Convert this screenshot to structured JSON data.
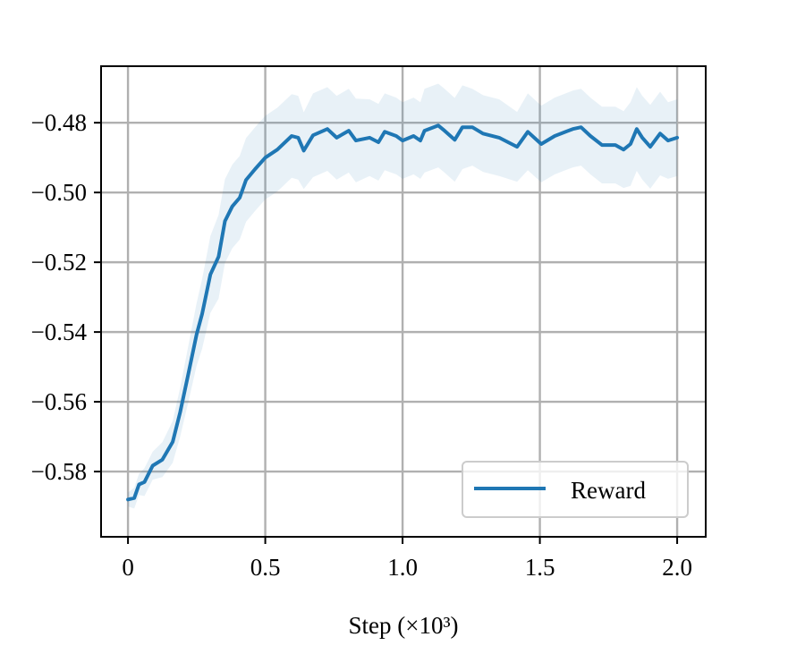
{
  "chart_data": {
    "type": "line",
    "title": "",
    "xlabel": "Step (×10³)",
    "ylabel": "",
    "xlim": [
      -0.098,
      2.104
    ],
    "ylim": [
      -0.5987,
      -0.4638
    ],
    "xticks": [
      0,
      0.5,
      1.0,
      1.5,
      2.0
    ],
    "xtick_labels": [
      "0",
      "0.5",
      "1.0",
      "1.5",
      "2.0"
    ],
    "yticks": [
      -0.48,
      -0.5,
      -0.52,
      -0.54,
      -0.56,
      -0.58
    ],
    "ytick_labels": [
      "−0.48",
      "−0.50",
      "−0.52",
      "−0.54",
      "−0.56",
      "−0.58"
    ],
    "grid": true,
    "legend_position": "lower-right",
    "series": [
      {
        "name": "Reward",
        "color": "#1f77b4",
        "band_color": "#1f77b4",
        "band": "shaded ± std",
        "x": [
          0,
          0.023,
          0.04,
          0.06,
          0.09,
          0.125,
          0.163,
          0.19,
          0.218,
          0.25,
          0.27,
          0.3,
          0.33,
          0.353,
          0.38,
          0.407,
          0.43,
          0.463,
          0.5,
          0.544,
          0.596,
          0.62,
          0.64,
          0.674,
          0.726,
          0.76,
          0.804,
          0.83,
          0.88,
          0.912,
          0.935,
          0.977,
          1.0,
          1.04,
          1.065,
          1.08,
          1.13,
          1.153,
          1.19,
          1.218,
          1.254,
          1.293,
          1.352,
          1.417,
          1.456,
          1.505,
          1.554,
          1.62,
          1.65,
          1.684,
          1.726,
          1.775,
          1.805,
          1.83,
          1.853,
          1.873,
          1.902,
          1.938,
          1.967,
          2.0
        ],
        "y": [
          -0.588,
          -0.5876,
          -0.5837,
          -0.583,
          -0.5783,
          -0.5766,
          -0.5715,
          -0.563,
          -0.5527,
          -0.5407,
          -0.5348,
          -0.5235,
          -0.5184,
          -0.5082,
          -0.504,
          -0.5015,
          -0.4964,
          -0.4933,
          -0.49,
          -0.4877,
          -0.4838,
          -0.4843,
          -0.488,
          -0.4836,
          -0.4818,
          -0.4843,
          -0.4823,
          -0.4851,
          -0.4843,
          -0.4856,
          -0.4826,
          -0.4838,
          -0.4851,
          -0.4838,
          -0.4851,
          -0.4823,
          -0.4808,
          -0.4823,
          -0.4849,
          -0.4813,
          -0.4813,
          -0.4831,
          -0.4843,
          -0.4869,
          -0.4826,
          -0.4861,
          -0.4838,
          -0.4818,
          -0.4813,
          -0.4838,
          -0.4864,
          -0.4864,
          -0.4877,
          -0.4861,
          -0.4818,
          -0.4843,
          -0.4869,
          -0.4831,
          -0.4851,
          -0.4843
        ],
        "std": [
          0.002,
          0.003,
          0.003,
          0.004,
          0.004,
          0.005,
          0.006,
          0.007,
          0.008,
          0.009,
          0.01,
          0.011,
          0.012,
          0.012,
          0.012,
          0.012,
          0.012,
          0.012,
          0.012,
          0.012,
          0.012,
          0.012,
          0.011,
          0.012,
          0.012,
          0.012,
          0.012,
          0.012,
          0.011,
          0.011,
          0.011,
          0.011,
          0.011,
          0.011,
          0.011,
          0.012,
          0.012,
          0.012,
          0.012,
          0.012,
          0.011,
          0.011,
          0.011,
          0.01,
          0.011,
          0.011,
          0.011,
          0.011,
          0.011,
          0.011,
          0.011,
          0.011,
          0.011,
          0.012,
          0.012,
          0.012,
          0.012,
          0.012,
          0.011,
          0.011
        ]
      }
    ]
  }
}
